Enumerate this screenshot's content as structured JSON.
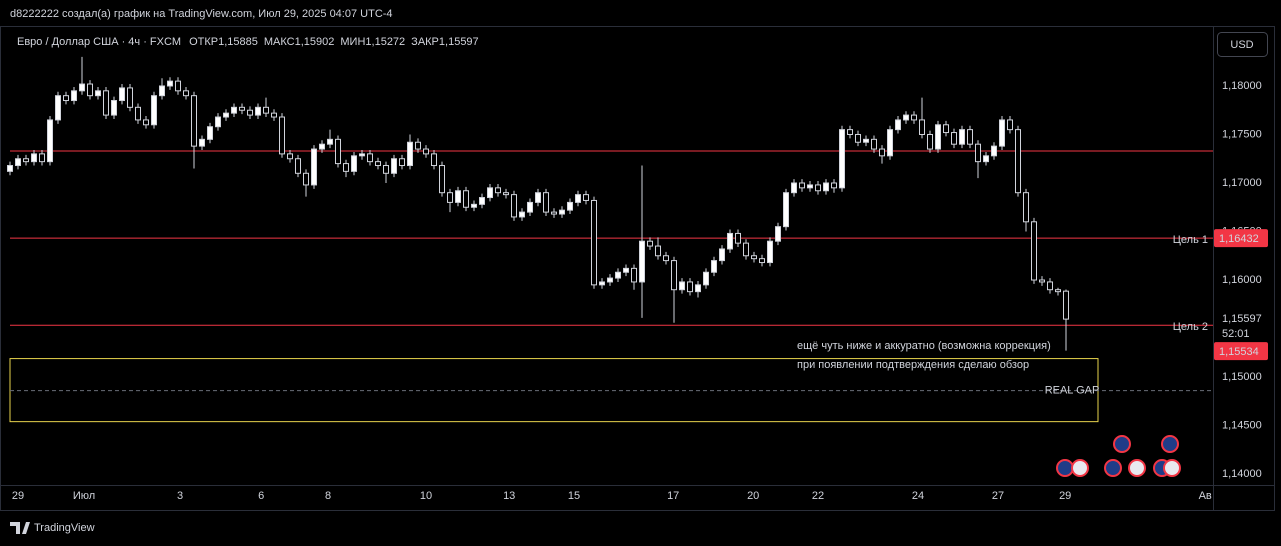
{
  "attribution": "d8222222 создал(а) график на TradingView.com, Июл 29, 2025 04:07 UTC-4",
  "brand": "TradingView",
  "currency": "USD",
  "chart_data": {
    "type": "candlestick",
    "legend": {
      "symbol": "Евро / Доллар США · 4ч · FXCM",
      "fields": [
        {
          "name": "ОТКР",
          "label": "1,15885"
        },
        {
          "name": "МАКС",
          "label": "1,15902"
        },
        {
          "name": "МИН",
          "label": "1,15272"
        },
        {
          "name": "ЗАКР",
          "label": "1,15597"
        }
      ]
    },
    "open": [
      1.1712,
      1.1718,
      1.1725,
      1.1722,
      1.173,
      1.1722,
      1.1765,
      1.179,
      1.1785,
      1.1795,
      1.1802,
      1.179,
      1.1795,
      1.177,
      1.1785,
      1.1798,
      1.1778,
      1.1765,
      1.176,
      1.179,
      1.18,
      1.1805,
      1.1795,
      1.179,
      1.1738,
      1.1745,
      1.1758,
      1.1768,
      1.1772,
      1.1778,
      1.1775,
      1.177,
      1.1778,
      1.1772,
      1.1768,
      1.173,
      1.1725,
      1.171,
      1.1698,
      1.1735,
      1.174,
      1.1745,
      1.172,
      1.1712,
      1.1728,
      1.173,
      1.1722,
      1.1718,
      1.171,
      1.1725,
      1.1718,
      1.1742,
      1.1735,
      1.173,
      1.1718,
      1.169,
      1.168,
      1.1692,
      1.1675,
      1.1678,
      1.1685,
      1.1695,
      1.169,
      1.1688,
      1.1665,
      1.167,
      1.168,
      1.169,
      1.167,
      1.1668,
      1.1672,
      1.168,
      1.1688,
      1.1682,
      1.1595,
      1.1598,
      1.1602,
      1.1608,
      1.1612,
      1.1598,
      1.164,
      1.1635,
      1.1625,
      1.162,
      1.159,
      1.1598,
      1.1588,
      1.1595,
      1.1608,
      1.162,
      1.1632,
      1.1648,
      1.1638,
      1.1625,
      1.1622,
      1.1618,
      1.164,
      1.1655,
      1.169,
      1.17,
      1.1695,
      1.1698,
      1.1692,
      1.17,
      1.1695,
      1.1755,
      1.175,
      1.1742,
      1.1745,
      1.1735,
      1.1728,
      1.1755,
      1.1765,
      1.177,
      1.1765,
      1.175,
      1.1735,
      1.176,
      1.1752,
      1.174,
      1.1755,
      1.174,
      1.1722,
      1.1728,
      1.1738,
      1.1765,
      1.1755,
      1.169,
      1.166,
      1.16,
      1.1598,
      1.159,
      1.15885
    ],
    "high": [
      1.1722,
      1.1729,
      1.1729,
      1.1734,
      1.1734,
      1.1769,
      1.1794,
      1.1794,
      1.1799,
      1.183,
      1.1806,
      1.1799,
      1.1799,
      1.1789,
      1.1802,
      1.1802,
      1.1782,
      1.1769,
      1.1794,
      1.1808,
      1.1809,
      1.1809,
      1.1799,
      1.1794,
      1.1749,
      1.1762,
      1.1772,
      1.1776,
      1.1782,
      1.1782,
      1.1779,
      1.1782,
      1.1788,
      1.1776,
      1.1772,
      1.1734,
      1.1729,
      1.1714,
      1.1739,
      1.1744,
      1.1755,
      1.1749,
      1.1724,
      1.1732,
      1.1734,
      1.1734,
      1.1726,
      1.1722,
      1.1729,
      1.1729,
      1.175,
      1.1746,
      1.1739,
      1.1734,
      1.1722,
      1.1694,
      1.1696,
      1.1696,
      1.1682,
      1.1689,
      1.1699,
      1.1699,
      1.1694,
      1.1692,
      1.1674,
      1.1684,
      1.1694,
      1.1694,
      1.1674,
      1.1676,
      1.1684,
      1.1692,
      1.1692,
      1.1686,
      1.1602,
      1.1606,
      1.1612,
      1.1616,
      1.1616,
      1.1718,
      1.1644,
      1.1644,
      1.1629,
      1.1624,
      1.1602,
      1.1602,
      1.1599,
      1.1612,
      1.1624,
      1.1636,
      1.1652,
      1.1652,
      1.1642,
      1.1629,
      1.1626,
      1.1644,
      1.1659,
      1.1694,
      1.1704,
      1.1704,
      1.1702,
      1.1702,
      1.1704,
      1.1704,
      1.1759,
      1.1759,
      1.1754,
      1.1749,
      1.1749,
      1.1739,
      1.1759,
      1.1769,
      1.1774,
      1.1774,
      1.1788,
      1.1754,
      1.1764,
      1.1764,
      1.1756,
      1.1759,
      1.1759,
      1.1744,
      1.1732,
      1.1742,
      1.1769,
      1.1769,
      1.1759,
      1.1694,
      1.1664,
      1.1604,
      1.1602,
      1.1592,
      1.15902
    ],
    "low": [
      1.1708,
      1.1714,
      1.1718,
      1.1718,
      1.1718,
      1.1718,
      1.1761,
      1.1781,
      1.1781,
      1.1791,
      1.1786,
      1.1786,
      1.1766,
      1.1766,
      1.1781,
      1.1774,
      1.1761,
      1.1756,
      1.1756,
      1.1786,
      1.1796,
      1.1791,
      1.1786,
      1.1715,
      1.1734,
      1.1741,
      1.1754,
      1.1764,
      1.1768,
      1.1771,
      1.1766,
      1.1766,
      1.1768,
      1.1764,
      1.1726,
      1.1721,
      1.1706,
      1.1686,
      1.1694,
      1.1731,
      1.1736,
      1.1716,
      1.1706,
      1.1708,
      1.1724,
      1.1718,
      1.1714,
      1.17,
      1.1706,
      1.1714,
      1.1714,
      1.1731,
      1.1726,
      1.1714,
      1.1686,
      1.167,
      1.1676,
      1.1671,
      1.1671,
      1.1674,
      1.1681,
      1.1686,
      1.1684,
      1.1661,
      1.1661,
      1.1666,
      1.1676,
      1.1666,
      1.1664,
      1.1664,
      1.1668,
      1.1676,
      1.1678,
      1.1591,
      1.1591,
      1.1594,
      1.1598,
      1.1604,
      1.159,
      1.1561,
      1.1631,
      1.1621,
      1.1616,
      1.1556,
      1.1586,
      1.1584,
      1.1582,
      1.1591,
      1.1604,
      1.1616,
      1.1628,
      1.1634,
      1.1621,
      1.1618,
      1.1614,
      1.1614,
      1.1636,
      1.1651,
      1.1686,
      1.1691,
      1.1691,
      1.1688,
      1.1688,
      1.169,
      1.1691,
      1.1746,
      1.1738,
      1.1738,
      1.1731,
      1.172,
      1.1724,
      1.1751,
      1.1761,
      1.1761,
      1.1746,
      1.1731,
      1.1731,
      1.1748,
      1.1736,
      1.1736,
      1.1736,
      1.1705,
      1.1718,
      1.1724,
      1.1734,
      1.1751,
      1.1686,
      1.165,
      1.1596,
      1.1594,
      1.1586,
      1.1584,
      1.15272
    ],
    "close": [
      1.1718,
      1.1725,
      1.1722,
      1.173,
      1.1722,
      1.1765,
      1.179,
      1.1785,
      1.1795,
      1.1802,
      1.179,
      1.1795,
      1.177,
      1.1785,
      1.1798,
      1.1778,
      1.1765,
      1.176,
      1.179,
      1.18,
      1.1805,
      1.1795,
      1.179,
      1.1738,
      1.1745,
      1.1758,
      1.1768,
      1.1772,
      1.1778,
      1.1775,
      1.177,
      1.1778,
      1.1772,
      1.1768,
      1.173,
      1.1725,
      1.171,
      1.1698,
      1.1735,
      1.174,
      1.1745,
      1.172,
      1.1712,
      1.1728,
      1.173,
      1.1722,
      1.1718,
      1.171,
      1.1725,
      1.1718,
      1.1742,
      1.1735,
      1.173,
      1.1718,
      1.169,
      1.168,
      1.1692,
      1.1675,
      1.1678,
      1.1685,
      1.1695,
      1.169,
      1.1688,
      1.1665,
      1.167,
      1.168,
      1.169,
      1.167,
      1.1668,
      1.1672,
      1.168,
      1.1688,
      1.1682,
      1.1595,
      1.1598,
      1.1602,
      1.1608,
      1.1612,
      1.1598,
      1.164,
      1.1635,
      1.1625,
      1.162,
      1.159,
      1.1598,
      1.1588,
      1.1595,
      1.1608,
      1.162,
      1.1632,
      1.1648,
      1.1638,
      1.1625,
      1.1622,
      1.1618,
      1.164,
      1.1655,
      1.169,
      1.17,
      1.1695,
      1.1698,
      1.1692,
      1.17,
      1.1695,
      1.1755,
      1.175,
      1.1742,
      1.1745,
      1.1735,
      1.1728,
      1.1755,
      1.1765,
      1.177,
      1.1765,
      1.175,
      1.1735,
      1.176,
      1.1752,
      1.174,
      1.1755,
      1.174,
      1.1722,
      1.1728,
      1.1738,
      1.1765,
      1.1755,
      1.169,
      1.166,
      1.16,
      1.1598,
      1.159,
      1.1588,
      1.15597
    ],
    "xlim": [
      -1.25,
      150.375
    ],
    "xticks": [
      {
        "value": 1,
        "label": "29"
      },
      {
        "value": 9.25,
        "label": "Июл"
      },
      {
        "value": 21.25,
        "label": "3"
      },
      {
        "value": 31.4,
        "label": "6"
      },
      {
        "value": 39.75,
        "label": "8"
      },
      {
        "value": 52,
        "label": "10"
      },
      {
        "value": 62.4,
        "label": "13"
      },
      {
        "value": 70.5,
        "label": "15"
      },
      {
        "value": 82.9,
        "label": "17"
      },
      {
        "value": 92.9,
        "label": "20"
      },
      {
        "value": 101,
        "label": "22"
      },
      {
        "value": 113.5,
        "label": "24"
      },
      {
        "value": 123.5,
        "label": "27"
      },
      {
        "value": 131.9,
        "label": "29"
      },
      {
        "value": 149.4,
        "label": "Ав"
      }
    ],
    "ylim": [
      1.13887,
      1.18577
    ],
    "yticks": [
      {
        "value": 1.14,
        "label": "1,14000"
      },
      {
        "value": 1.145,
        "label": "1,14500"
      },
      {
        "value": 1.15,
        "label": "1,15000"
      },
      {
        "value": 1.16,
        "label": "1,16000"
      },
      {
        "value": 1.165,
        "label": "1,16500"
      },
      {
        "value": 1.17,
        "label": "1,17000"
      },
      {
        "value": 1.175,
        "label": "1,17500"
      },
      {
        "value": 1.18,
        "label": "1,18000"
      }
    ],
    "grid": false,
    "up_color": "#ffffff",
    "down_color": "#000000",
    "level_color": "#f23645",
    "levels": [
      {
        "value": 1.1733
      },
      {
        "value": 1.16432,
        "label": "1,16432",
        "name": "Цель 1"
      },
      {
        "value": 1.15534,
        "label": "1,15534",
        "name": "Цель 2"
      }
    ],
    "last_price": {
      "value": 1.15597,
      "label": "1,15597",
      "countdown": "52:01"
    },
    "zone": {
      "top": 1.1519,
      "bottom": 1.1454,
      "mid": 1.1486,
      "from": 0,
      "to": 136,
      "label": "REAL GAP",
      "color": "#e8d44d"
    },
    "annotation": [
      "ещё чуть ниже и аккуратно (возможна коррекция)",
      "при появлении подтверждения сделаю обзор"
    ]
  }
}
